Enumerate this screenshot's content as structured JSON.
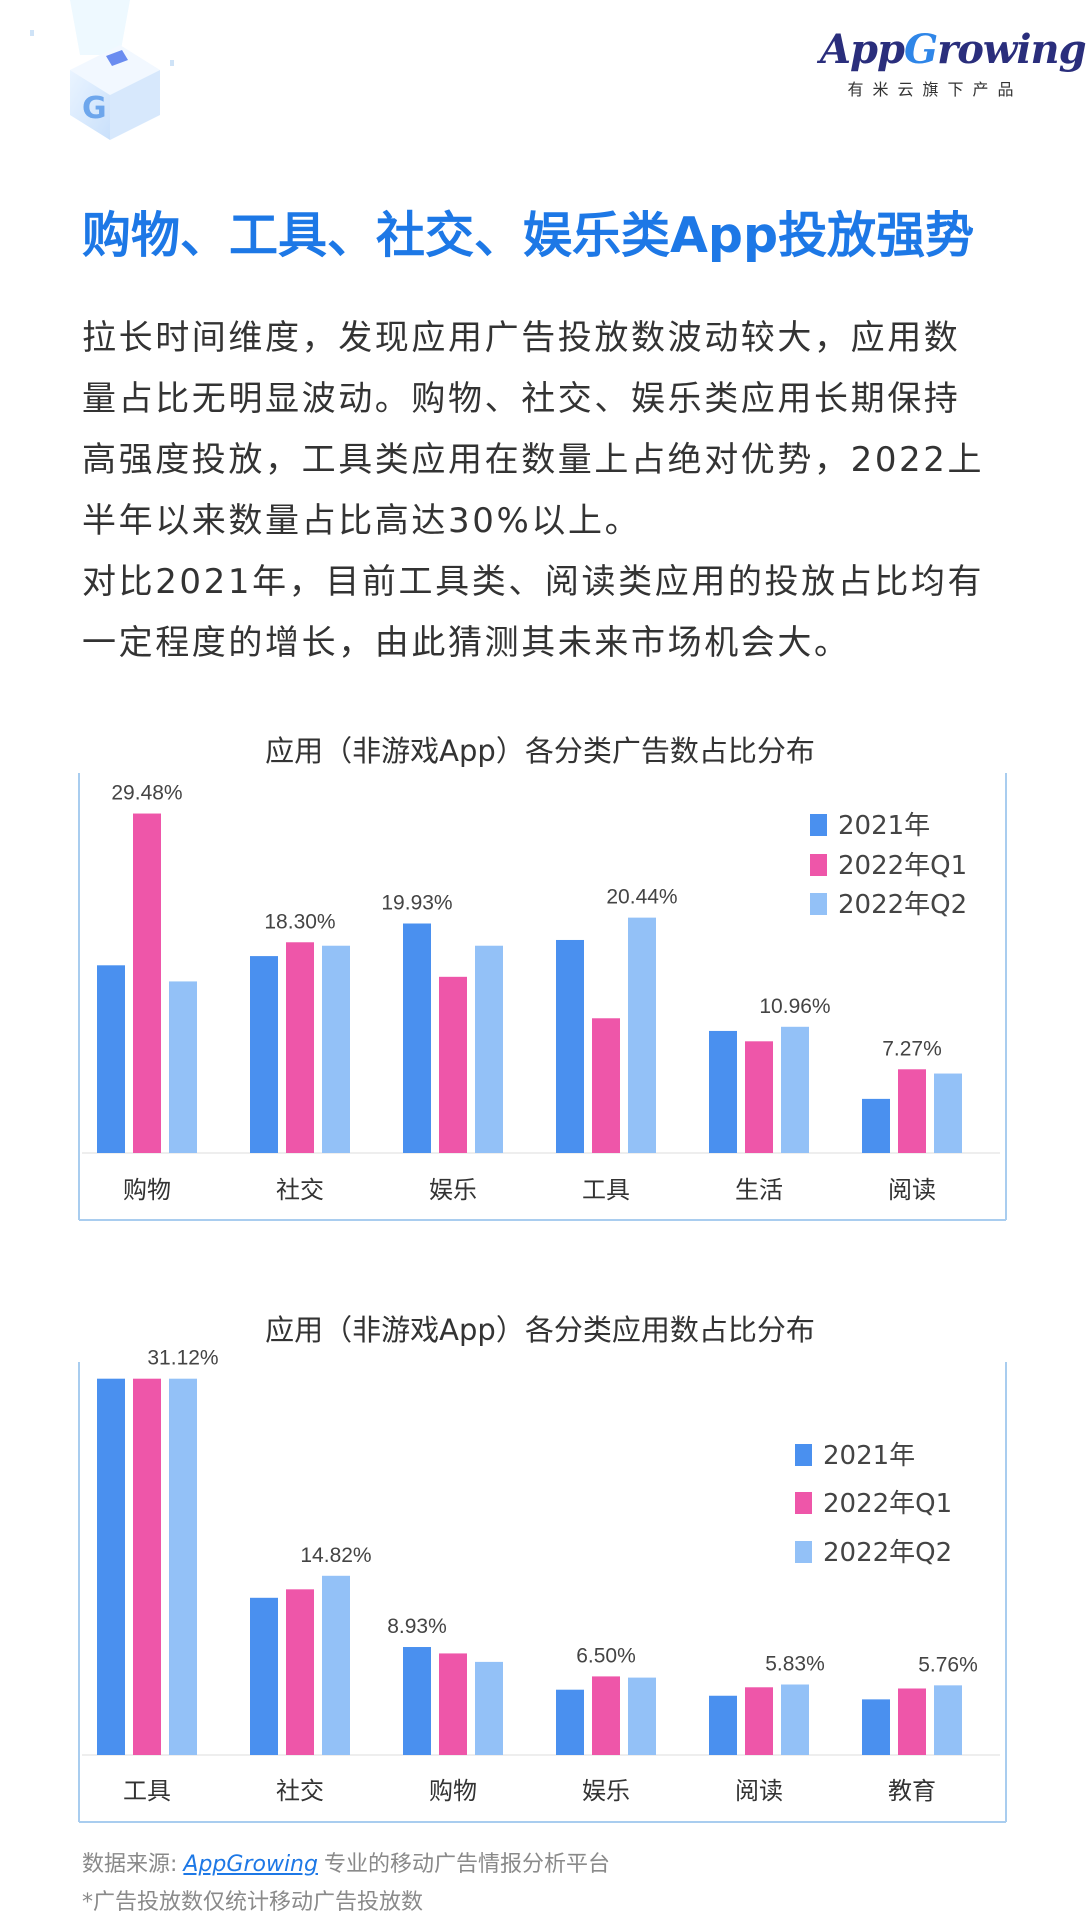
{
  "header": {
    "logo_text": "AppGrowing",
    "logo_subtitle": "有米云旗下产品",
    "title": "购物、工具、社交、娱乐类App投放强势"
  },
  "body": {
    "lines": [
      "拉长时间维度，发现应用广告投放数波动较大，应用数",
      "量占比无明显波动。购物、社交、娱乐类应用长期保持",
      "高强度投放，工具类应用在数量上占绝对优势，2022上",
      "半年以来数量占比高达30%以上。",
      "对比2021年，目前工具类、阅读类应用的投放占比均有",
      "一定程度的增长，由此猜测其未来市场机会大。"
    ]
  },
  "colors": {
    "2021": "#4a90ef",
    "2022Q1": "#ee56a9",
    "2022Q2": "#93c1f7",
    "title": "#1d78e6"
  },
  "chart_data": [
    {
      "type": "bar",
      "title": "应用（非游戏App）各分类广告数占比分布",
      "categories": [
        "购物",
        "社交",
        "娱乐",
        "工具",
        "生活",
        "阅读"
      ],
      "series": [
        {
          "name": "2021年",
          "values": [
            16.3,
            17.1,
            19.93,
            18.5,
            10.6,
            4.7
          ]
        },
        {
          "name": "2022年Q1",
          "values": [
            29.48,
            18.3,
            15.3,
            11.7,
            9.7,
            7.27
          ]
        },
        {
          "name": "2022年Q2",
          "values": [
            14.9,
            18.0,
            18.0,
            20.44,
            10.96,
            6.9
          ]
        }
      ],
      "data_labels": [
        {
          "category": "购物",
          "series": 1,
          "text": "29.48%"
        },
        {
          "category": "社交",
          "series": 1,
          "text": "18.30%"
        },
        {
          "category": "娱乐",
          "series": 0,
          "text": "19.93%"
        },
        {
          "category": "工具",
          "series": 2,
          "text": "20.44%"
        },
        {
          "category": "生活",
          "series": 2,
          "text": "10.96%"
        },
        {
          "category": "阅读",
          "series": 1,
          "text": "7.27%"
        }
      ],
      "ylim": [
        0,
        33
      ],
      "grid": false,
      "legend": "top-right",
      "unit": "%"
    },
    {
      "type": "bar",
      "title": "应用（非游戏App）各分类应用数占比分布",
      "categories": [
        "工具",
        "社交",
        "购物",
        "娱乐",
        "阅读",
        "教育"
      ],
      "series": [
        {
          "name": "2021年",
          "values": [
            31.12,
            13.0,
            8.93,
            5.4,
            4.9,
            4.6
          ]
        },
        {
          "name": "2022年Q1",
          "values": [
            31.12,
            13.7,
            8.4,
            6.5,
            5.6,
            5.5
          ]
        },
        {
          "name": "2022年Q2",
          "values": [
            31.12,
            14.82,
            7.7,
            6.4,
            5.83,
            5.76
          ]
        }
      ],
      "data_labels": [
        {
          "category": "工具",
          "series": 2,
          "text": "31.12%"
        },
        {
          "category": "社交",
          "series": 2,
          "text": "14.82%"
        },
        {
          "category": "购物",
          "series": 0,
          "text": "8.93%"
        },
        {
          "category": "娱乐",
          "series": 1,
          "text": "6.50%"
        },
        {
          "category": "阅读",
          "series": 2,
          "text": "5.83%"
        },
        {
          "category": "教育",
          "series": 2,
          "text": "5.76%"
        }
      ],
      "ylim": [
        0,
        32.5
      ],
      "grid": false,
      "legend": "top-right",
      "unit": "%"
    }
  ],
  "footer": {
    "source_prefix": "数据来源:",
    "source_link": "AppGrowing",
    "source_suffix": "专业的移动广告情报分析平台",
    "note": "*广告投放数仅统计移动广告投放数"
  }
}
